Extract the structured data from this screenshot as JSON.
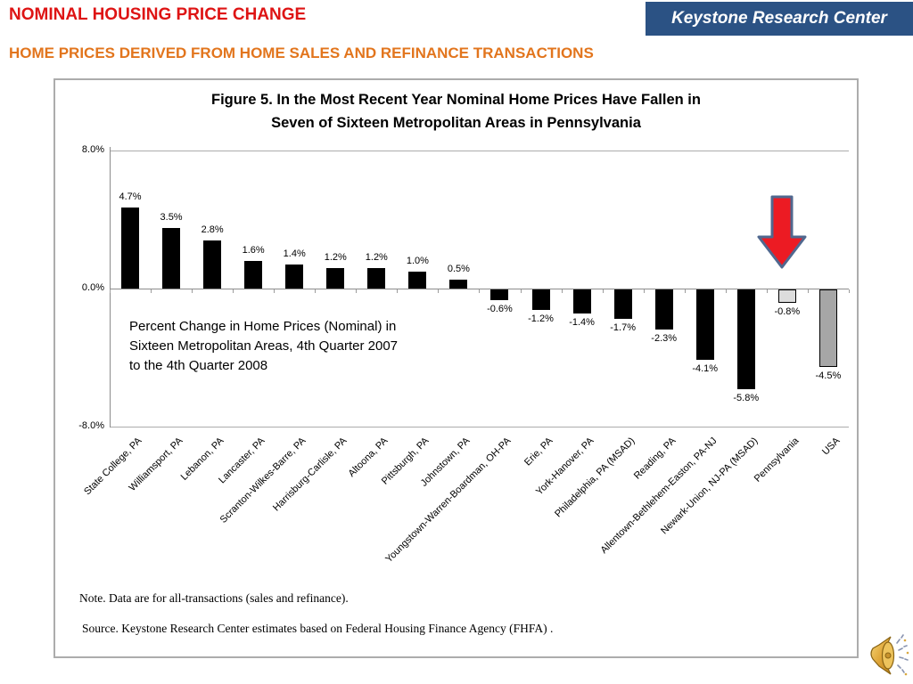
{
  "header": {
    "title": "NOMINAL HOUSING PRICE CHANGE",
    "brand": "Keystone Research Center",
    "subtitle": "HOME PRICES DERIVED FROM HOME SALES AND REFINANCE TRANSACTIONS"
  },
  "colors": {
    "title_red": "#DE1414",
    "subtitle_orange": "#E2751D",
    "brand_bg": "#2B5284",
    "bar_black": "#000000",
    "bar_pennsylvania": "#DDDDDD",
    "bar_usa": "#A6A6A6",
    "bar_outline": "#000000",
    "arrow_fill": "#EC1B23",
    "arrow_stroke": "#50688F",
    "grid_gray": "#ACACAC",
    "axis_gray": "#8C8C8C"
  },
  "chart_data": {
    "type": "bar",
    "title_lines": [
      "Figure 5. In the Most Recent Year Nominal Home Prices Have Fallen in",
      "Seven of Sixteen Metropolitan  Areas in Pennsylvania"
    ],
    "categories": [
      "State College, PA",
      "Williamsport, PA",
      "Lebanon, PA",
      "Lancaster, PA",
      "Scranton-Wilkes-Barre, PA",
      "Harrisburg-Carlisle, PA",
      "Altoona, PA",
      "Pittsburgh, PA",
      "Johnstown, PA",
      "Youngstown-Warren-Boardman, OH-PA",
      "Erie, PA",
      "York-Hanover, PA",
      "Philadelphia, PA  (MSAD)",
      "Reading, PA",
      "Allentown-Bethlehem-Easton,  PA-NJ",
      "Newark-Union, NJ-PA  (MSAD)",
      "Pennsylvania",
      "USA"
    ],
    "values": [
      4.7,
      3.5,
      2.8,
      1.6,
      1.4,
      1.2,
      1.2,
      1.0,
      0.5,
      -0.6,
      -1.2,
      -1.4,
      -1.7,
      -2.3,
      -4.1,
      -5.8,
      -0.8,
      -4.5
    ],
    "labels": [
      "4.7%",
      "3.5%",
      "2.8%",
      "1.6%",
      "1.4%",
      "1.2%",
      "1.2%",
      "1.0%",
      "0.5%",
      "-0.6%",
      "-1.2%",
      "-1.4%",
      "-1.7%",
      "-2.3%",
      "-4.1%",
      "-5.8%",
      "-0.8%",
      "-4.5%"
    ],
    "bar_styles": [
      "black",
      "black",
      "black",
      "black",
      "black",
      "black",
      "black",
      "black",
      "black",
      "black",
      "black",
      "black",
      "black",
      "black",
      "black",
      "black",
      "pennsylvania",
      "usa"
    ],
    "ylim": [
      -8,
      8
    ],
    "yticks": [
      {
        "label": "8.0%",
        "value": 8
      },
      {
        "label": "0.0%",
        "value": 0
      },
      {
        "label": "-8.0%",
        "value": -8
      }
    ],
    "grid": "horizontal gridlines at +8% and -8%, category axis at 0%, outside ticks below zero axis",
    "legend": "none",
    "annotation_lines": [
      "Percent Change in Home Prices (Nominal)  in",
      "Sixteen Metropolitan Areas, 4th Quarter 2007",
      "to the 4th Quarter 2008"
    ]
  },
  "footer": {
    "note": "Note. Data are for all-transactions (sales and refinance).",
    "source": "Source. Keystone Research Center estimates based on Federal Housing Finance Agency (FHFA) ."
  },
  "icons": {
    "speaker": "speaker-audio-icon",
    "arrow": "red-down-arrow"
  }
}
